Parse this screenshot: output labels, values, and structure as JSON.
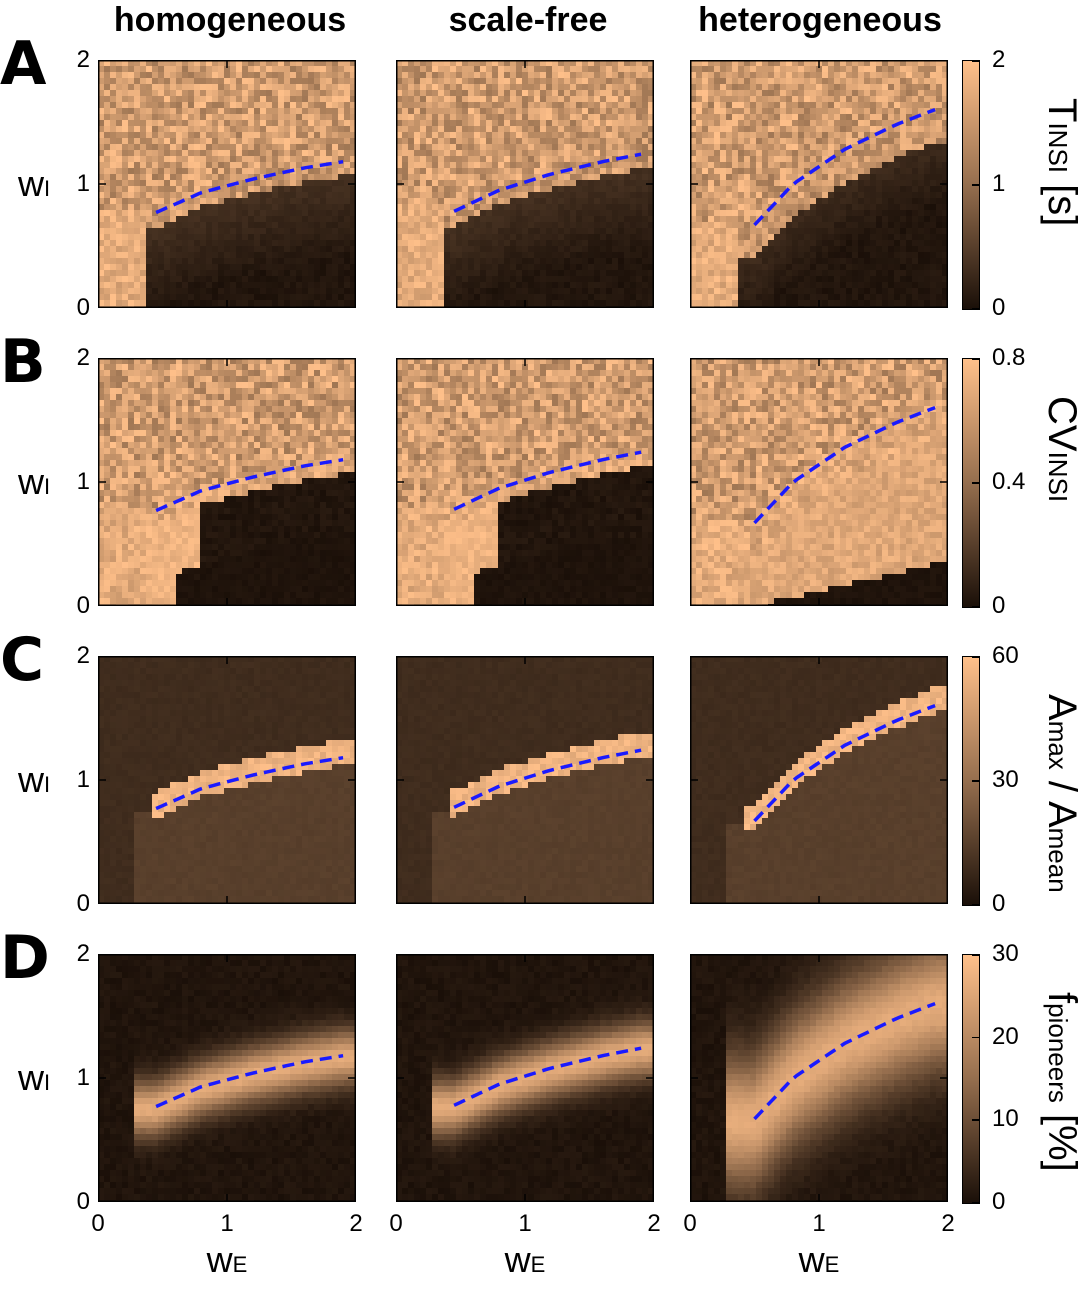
{
  "columns": [
    "homogeneous",
    "scale-free",
    "heterogeneous"
  ],
  "rows": [
    {
      "letter": "A",
      "cbar_label_main": "T",
      "cbar_label_sub": "INSI",
      "cbar_label_tail": " [s]",
      "cbar_ticks": [
        "2",
        "1",
        "0"
      ]
    },
    {
      "letter": "B",
      "cbar_label_main": "CV",
      "cbar_label_sub": "INSI",
      "cbar_label_tail": "",
      "cbar_ticks": [
        "0.8",
        "0.4",
        "0"
      ]
    },
    {
      "letter": "C",
      "cbar_label_main": "A",
      "cbar_label_sub": "max",
      "cbar_label_tail": " / A",
      "cbar_label_sub2": "mean",
      "cbar_ticks": [
        "60",
        "30",
        "0"
      ]
    },
    {
      "letter": "D",
      "cbar_label_main": "f",
      "cbar_label_sub": "pioneers",
      "cbar_label_tail": " [%]",
      "cbar_ticks": [
        "30",
        "20",
        "10",
        "0"
      ]
    }
  ],
  "axes": {
    "y_label_main": "w",
    "y_label_sub": "I",
    "x_label_main": "w",
    "x_label_sub": "E",
    "y_ticks": [
      "2",
      "1",
      "0"
    ],
    "x_ticks": [
      "0",
      "1",
      "2"
    ]
  },
  "colors": {
    "low": "#1a0f08",
    "high": "#ffc08a",
    "curve": "#1a1aff"
  },
  "chart_data": {
    "type": "heatmap",
    "xlim": [
      0,
      2
    ],
    "ylim": [
      0,
      2
    ],
    "curves": {
      "homogeneous": {
        "x": [
          0.45,
          0.8,
          1.2,
          1.6,
          1.9
        ],
        "y": [
          0.77,
          0.93,
          1.04,
          1.13,
          1.18
        ]
      },
      "scale-free": {
        "x": [
          0.45,
          0.8,
          1.2,
          1.6,
          1.9
        ],
        "y": [
          0.78,
          0.95,
          1.08,
          1.18,
          1.24
        ]
      },
      "heterogeneous": {
        "x": [
          0.5,
          0.8,
          1.2,
          1.6,
          1.9
        ],
        "y": [
          0.67,
          1.0,
          1.28,
          1.48,
          1.6
        ]
      }
    },
    "colorbar_ranges": {
      "A": [
        0,
        2
      ],
      "B": [
        0,
        0.8
      ],
      "C": [
        0,
        60
      ],
      "D": [
        0,
        30
      ]
    }
  }
}
